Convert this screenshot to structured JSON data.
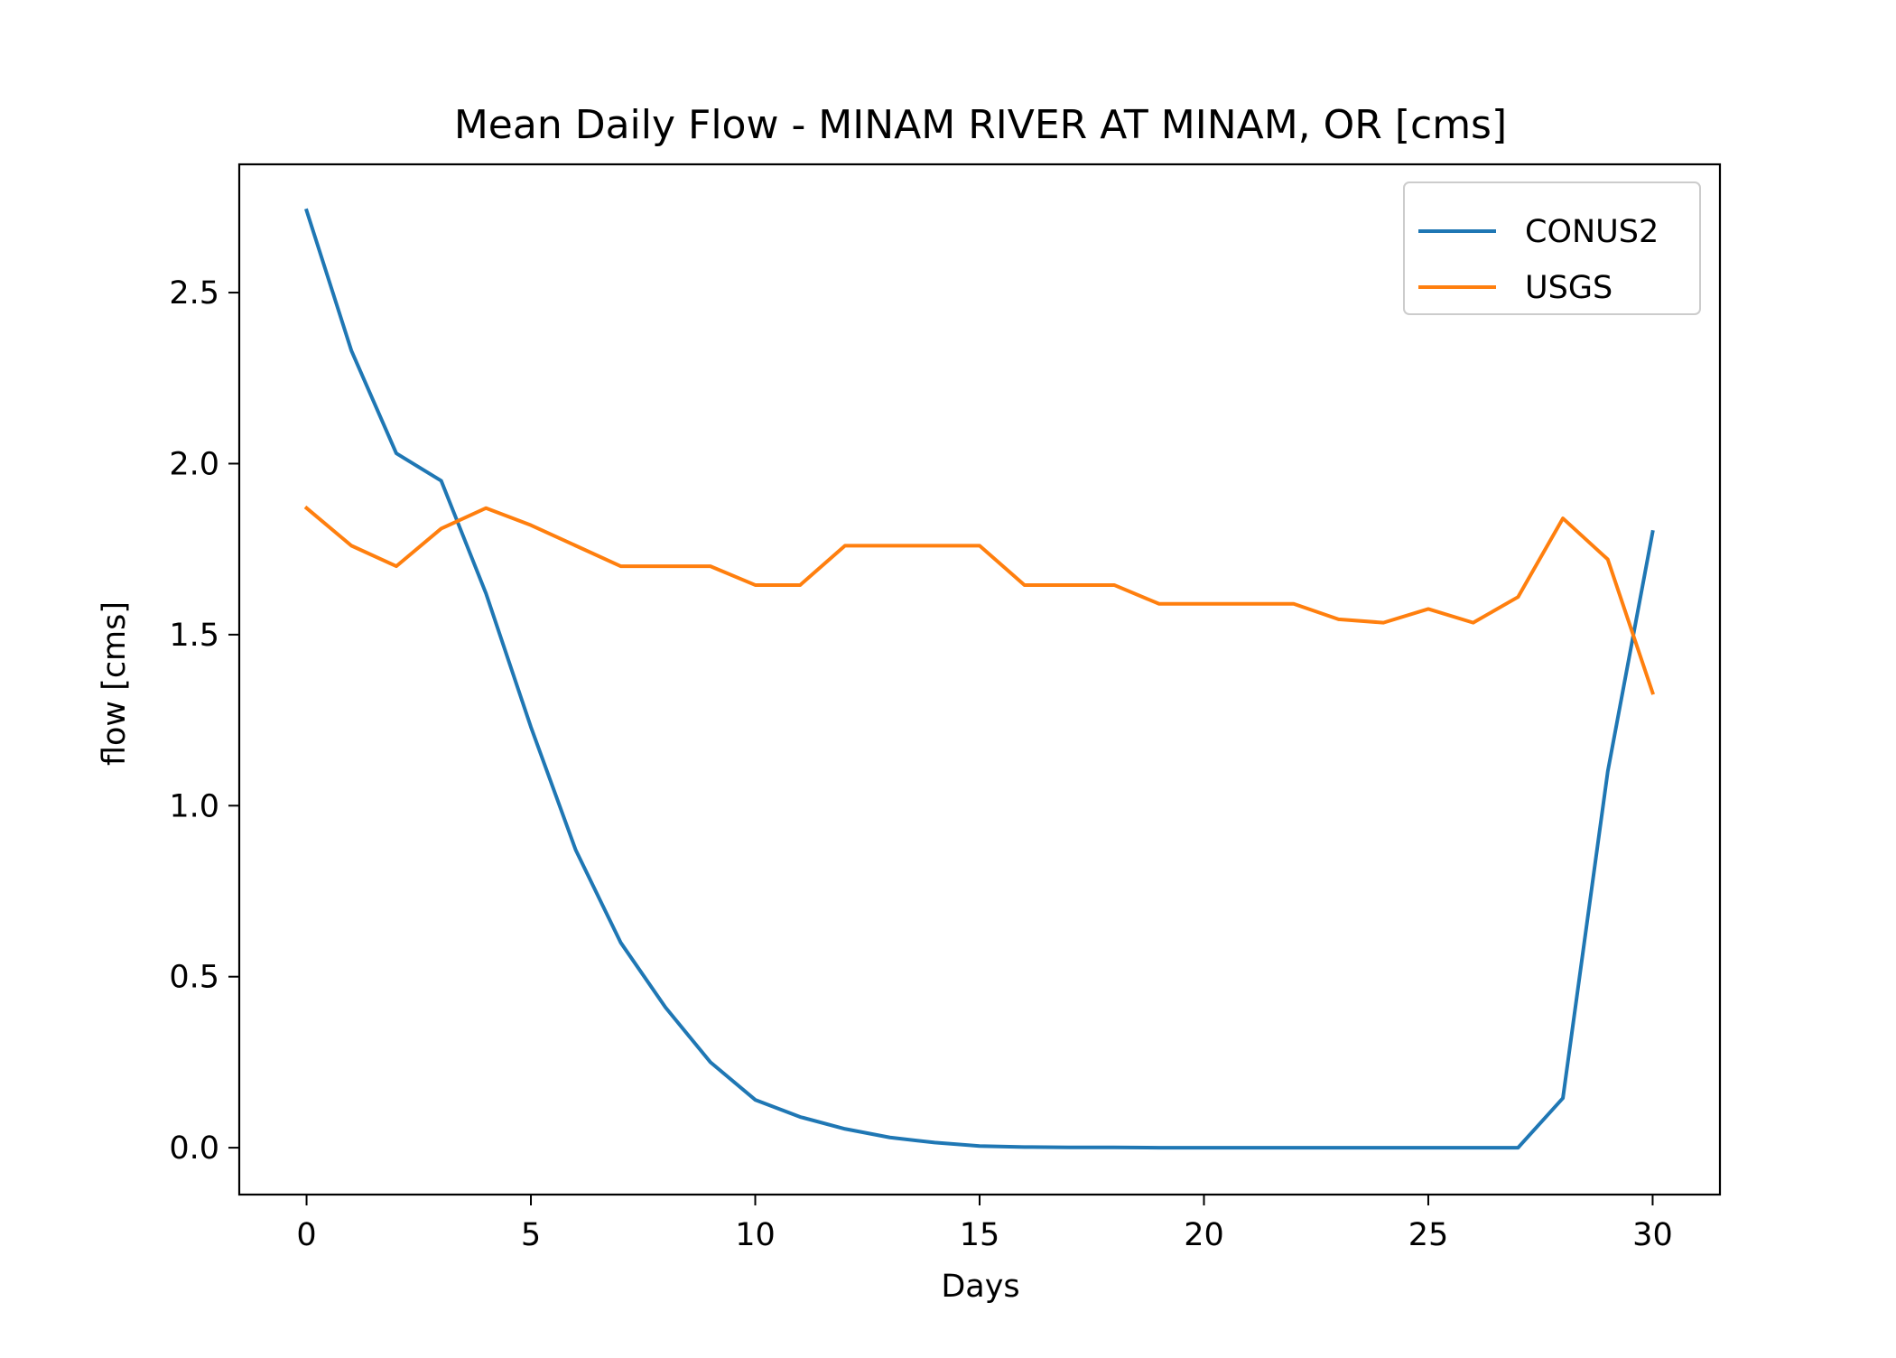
{
  "chart_data": {
    "type": "line",
    "title": "Mean Daily Flow - MINAM RIVER AT MINAM, OR [cms]",
    "xlabel": "Days",
    "ylabel": "flow [cms]",
    "xlim": [
      -1.5,
      31.5
    ],
    "ylim": [
      -0.137,
      2.875
    ],
    "x_ticks": [
      0,
      5,
      10,
      15,
      20,
      25,
      30
    ],
    "y_ticks": [
      0.0,
      0.5,
      1.0,
      1.5,
      2.0,
      2.5
    ],
    "grid": false,
    "legend_position": "top-right",
    "x": [
      0,
      1,
      2,
      3,
      4,
      5,
      6,
      7,
      8,
      9,
      10,
      11,
      12,
      13,
      14,
      15,
      16,
      17,
      18,
      19,
      20,
      21,
      22,
      23,
      24,
      25,
      26,
      27,
      28,
      29,
      30
    ],
    "series": [
      {
        "name": "CONUS2",
        "color": "#1f77b4",
        "values": [
          2.74,
          2.33,
          2.03,
          1.95,
          1.62,
          1.23,
          0.87,
          0.6,
          0.41,
          0.25,
          0.14,
          0.09,
          0.055,
          0.03,
          0.015,
          0.005,
          0.002,
          0.001,
          0.001,
          0.0,
          0.0,
          0.0,
          0.0,
          0.0,
          0.0,
          0.0,
          0.0,
          0.0,
          0.145,
          1.1,
          1.8
        ]
      },
      {
        "name": "USGS",
        "color": "#ff7f0e",
        "values": [
          1.87,
          1.76,
          1.7,
          1.81,
          1.87,
          1.82,
          1.76,
          1.7,
          1.7,
          1.7,
          1.645,
          1.645,
          1.76,
          1.76,
          1.76,
          1.76,
          1.645,
          1.645,
          1.645,
          1.59,
          1.59,
          1.59,
          1.59,
          1.545,
          1.535,
          1.575,
          1.535,
          1.61,
          1.84,
          1.72,
          1.33
        ]
      }
    ]
  }
}
